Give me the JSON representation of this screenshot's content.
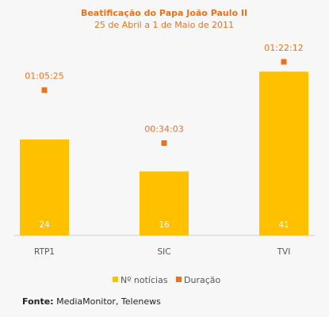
{
  "chart_data": {
    "type": "bar",
    "title": "Beatificação do Papa João Paulo II",
    "subtitle": "25 de Abril a 1 de Maio de 2011",
    "categories": [
      "RTP1",
      "SIC",
      "TVI"
    ],
    "series": [
      {
        "name": "Nº notícias",
        "values": [
          24,
          16,
          41
        ],
        "color": "#ffc000",
        "display": "bar"
      },
      {
        "name": "Duração",
        "values": [
          "01:05:25",
          "00:34:03",
          "01:22:12"
        ],
        "color": "#e8731e",
        "display": "marker"
      }
    ],
    "ylim": [
      0,
      50
    ],
    "grid": false,
    "legend": "bottom"
  },
  "source": {
    "label": "Fonte:",
    "text": "MediaMonitor, Telenews"
  }
}
